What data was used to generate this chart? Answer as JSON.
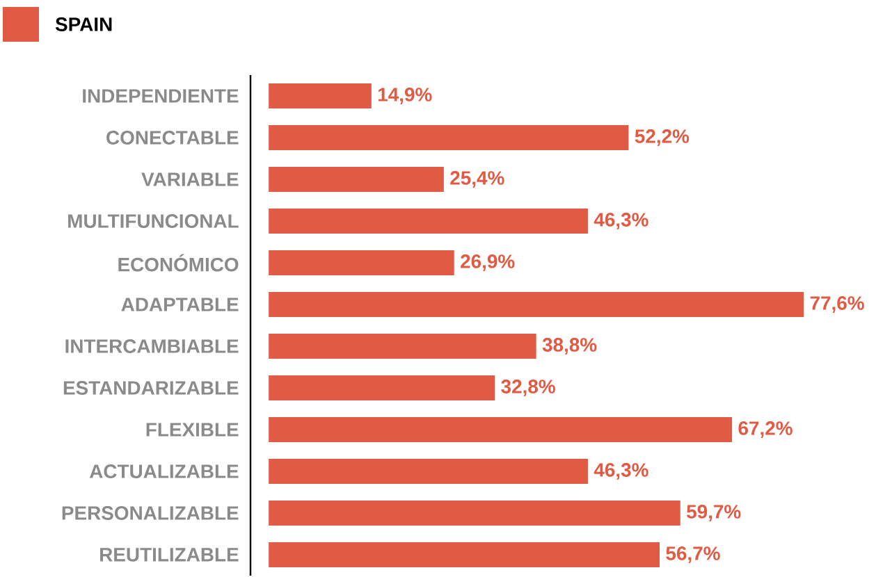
{
  "chart_data": {
    "type": "bar",
    "orientation": "horizontal",
    "legend": "top left",
    "categories": [
      "INDEPENDIENTE",
      "CONECTABLE",
      "VARIABLE",
      "MULTIFUNCIONAL",
      "ECONÓMICO",
      "ADAPTABLE",
      "INTERCAMBIABLE",
      "ESTANDARIZABLE",
      "FLEXIBLE",
      "ACTUALIZABLE",
      "PERSONALIZABLE",
      "REUTILIZABLE"
    ],
    "series": [
      {
        "name": "SPAIN",
        "color": "#e05a44",
        "values": [
          14.9,
          52.2,
          25.4,
          46.3,
          26.9,
          77.6,
          38.8,
          32.8,
          67.2,
          46.3,
          59.7,
          56.7
        ],
        "value_labels": [
          "14,9%",
          "52,2%",
          "25,4%",
          "46,3%",
          "26,9%",
          "77,6%",
          "38,8%",
          "32,8%",
          "67,2%",
          "46,3%",
          "59,7%",
          "56,7%"
        ]
      }
    ]
  }
}
